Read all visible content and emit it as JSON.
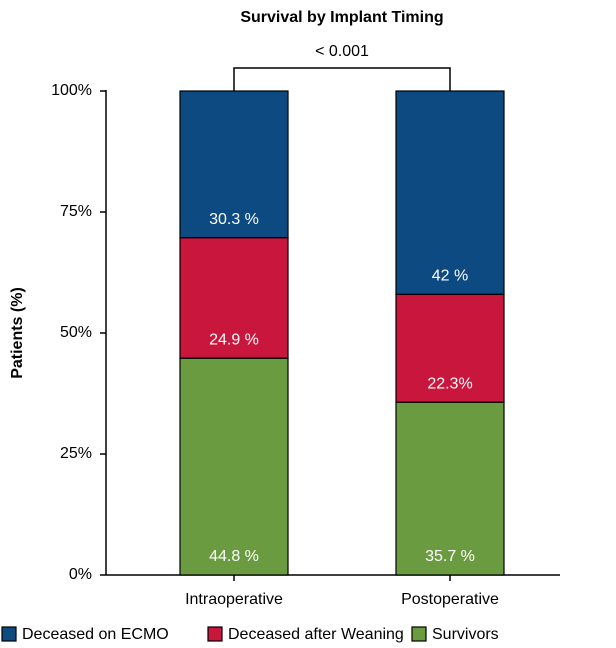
{
  "chart_data": {
    "type": "stacked_bar",
    "title": "Survival by Implant Timing",
    "y_label": "Patients (%)",
    "annotation": "< 0.001",
    "categories": [
      "Intraoperative",
      "Postoperative"
    ],
    "series": [
      {
        "name": "Deceased on ECMO",
        "color": "#0d4a82",
        "values": [
          30.3,
          42
        ],
        "value_labels": [
          "30.3 %",
          "42 %"
        ]
      },
      {
        "name": "Deceased after Weaning",
        "color": "#c8163c",
        "values": [
          24.9,
          22.3
        ],
        "value_labels": [
          "24.9 %",
          "22.3%"
        ]
      },
      {
        "name": "Survivors",
        "color": "#6b9b40",
        "values": [
          44.8,
          35.7
        ],
        "value_labels": [
          "44.8 %",
          "35.7 %"
        ]
      }
    ],
    "ylim": [
      0,
      100
    ],
    "yticks": [
      {
        "value": 0,
        "label": "0%"
      },
      {
        "value": 25,
        "label": "25%"
      },
      {
        "value": 50,
        "label": "50%"
      },
      {
        "value": 75,
        "label": "75%"
      },
      {
        "value": 100,
        "label": "100%"
      }
    ]
  }
}
